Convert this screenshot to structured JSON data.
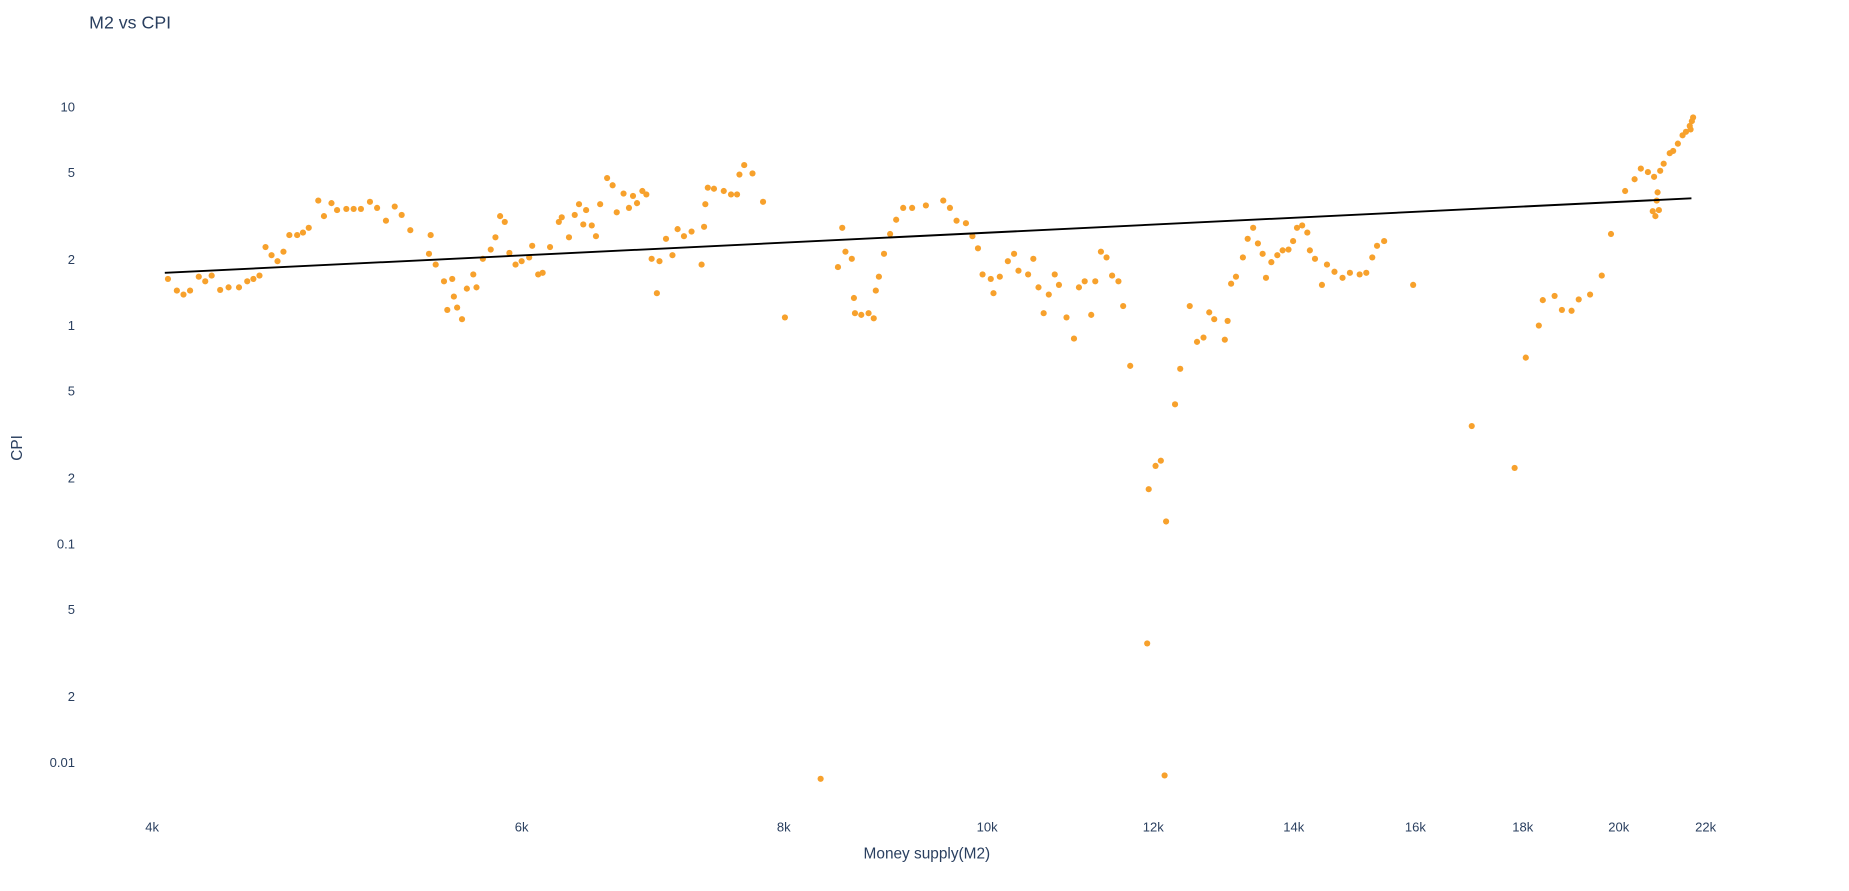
{
  "chart_data": {
    "type": "scatter",
    "title": "M2 vs CPI",
    "x_label": "Money supply(M2)",
    "y_label": "CPI",
    "log_x": true,
    "log_y": true,
    "grid": false,
    "xlim": [
      3733,
      23500
    ],
    "ylim": [
      0.0064,
      17.8
    ],
    "xticks": [
      {
        "value": 4000,
        "label": "4k"
      },
      {
        "value": 6000,
        "label": "6k"
      },
      {
        "value": 8000,
        "label": "8k"
      },
      {
        "value": 10000,
        "label": "10k"
      },
      {
        "value": 12000,
        "label": "12k"
      },
      {
        "value": 14000,
        "label": "14k"
      },
      {
        "value": 16000,
        "label": "16k"
      },
      {
        "value": 18000,
        "label": "18k"
      },
      {
        "value": 20000,
        "label": "20k"
      },
      {
        "value": 22000,
        "label": "22k"
      }
    ],
    "yticks": [
      0.01,
      {
        "value": 0.02,
        "label": "2"
      },
      {
        "value": 0.05,
        "label": "5"
      },
      0.1,
      {
        "value": 0.2,
        "label": "2"
      },
      {
        "value": 0.5,
        "label": "5"
      },
      1,
      {
        "value": 2,
        "label": "2"
      },
      {
        "value": 5,
        "label": "5"
      },
      10
    ],
    "color": "#f7a12c",
    "x": [
      4070,
      4110,
      4140,
      4170,
      4210,
      4240,
      4270,
      4310,
      4350,
      4400,
      4440,
      4470,
      4500,
      4530,
      4560,
      4590,
      4620,
      4650,
      4690,
      4720,
      4750,
      4800,
      4830,
      4870,
      4900,
      4950,
      4990,
      5030,
      5080,
      5120,
      5170,
      5220,
      5260,
      5310,
      5420,
      5430,
      5460,
      5510,
      5530,
      5560,
      5570,
      5590,
      5620,
      5650,
      5690,
      5710,
      5750,
      5800,
      5830,
      5860,
      5890,
      5920,
      5960,
      6000,
      6050,
      6070,
      6110,
      6140,
      6190,
      6250,
      6270,
      6320,
      6360,
      6390,
      6420,
      6440,
      6480,
      6510,
      6540,
      6590,
      6630,
      6660,
      6710,
      6750,
      6780,
      6810,
      6850,
      6880,
      6920,
      6960,
      6980,
      7030,
      7080,
      7120,
      7170,
      7230,
      7310,
      7330,
      7340,
      7360,
      7410,
      7490,
      7550,
      7600,
      7620,
      7660,
      7730,
      7820,
      8010,
      8330,
      8490,
      8530,
      8560,
      8620,
      8640,
      8650,
      8710,
      8780,
      8830,
      8850,
      8880,
      8930,
      8990,
      9050,
      9120,
      9210,
      9350,
      9530,
      9600,
      9670,
      9770,
      9840,
      9900,
      9950,
      10040,
      10070,
      10140,
      10230,
      10300,
      10350,
      10460,
      10520,
      10580,
      10640,
      10700,
      10770,
      10820,
      10910,
      11000,
      11060,
      11130,
      11210,
      11260,
      11330,
      11400,
      11470,
      11550,
      11610,
      11700,
      11920,
      11940,
      12030,
      12100,
      12170,
      12150,
      12290,
      12360,
      12490,
      12590,
      12680,
      12760,
      12830,
      12980,
      13020,
      13070,
      13140,
      13240,
      13310,
      13390,
      13460,
      13530,
      13580,
      13660,
      13750,
      13830,
      13920,
      13990,
      14050,
      14130,
      14210,
      14250,
      14330,
      14440,
      14520,
      14640,
      14770,
      14890,
      15050,
      15160,
      15260,
      15340,
      15460,
      15960,
      17020,
      17840,
      18060,
      18320,
      18400,
      18640,
      18790,
      18990,
      19140,
      19380,
      19630,
      19830,
      20140,
      20350,
      20490,
      20650,
      20790,
      20760,
      20820,
      20900,
      20870,
      20850,
      20930,
      21010,
      21150,
      21230,
      21340,
      21450,
      21530,
      21620,
      21670,
      21700,
      21640
    ],
    "y": [
      1.65,
      1.46,
      1.4,
      1.46,
      1.69,
      1.61,
      1.71,
      1.47,
      1.51,
      1.51,
      1.61,
      1.65,
      1.71,
      2.31,
      2.12,
      1.99,
      2.2,
      2.62,
      2.62,
      2.69,
      2.83,
      3.77,
      3.2,
      3.67,
      3.41,
      3.45,
      3.45,
      3.45,
      3.72,
      3.49,
      3.05,
      3.54,
      3.24,
      2.76,
      2.15,
      2.62,
      1.92,
      1.61,
      1.19,
      1.65,
      1.37,
      1.22,
      1.08,
      1.49,
      1.73,
      1.51,
      2.04,
      2.25,
      2.56,
      3.2,
      3.01,
      2.17,
      1.92,
      1.99,
      2.07,
      2.34,
      1.73,
      1.76,
      2.31,
      3.01,
      3.16,
      2.56,
      3.24,
      3.63,
      2.93,
      3.41,
      2.9,
      2.59,
      3.63,
      4.78,
      4.43,
      3.33,
      4.06,
      3.49,
      3.96,
      3.67,
      4.17,
      4.02,
      2.04,
      1.42,
      1.99,
      2.52,
      2.12,
      2.79,
      2.59,
      2.72,
      1.92,
      2.86,
      3.63,
      4.32,
      4.27,
      4.17,
      4.02,
      4.02,
      4.96,
      5.48,
      5.02,
      3.72,
      1.1,
      0.0085,
      1.87,
      2.83,
      2.2,
      2.04,
      1.35,
      1.15,
      1.13,
      1.15,
      1.09,
      1.46,
      1.69,
      2.15,
      2.65,
      3.08,
      3.49,
      3.49,
      3.58,
      3.77,
      3.49,
      3.05,
      2.97,
      2.59,
      2.28,
      1.73,
      1.65,
      1.42,
      1.69,
      1.99,
      2.15,
      1.8,
      1.73,
      2.04,
      1.51,
      1.15,
      1.4,
      1.73,
      1.55,
      1.1,
      0.88,
      1.51,
      1.61,
      1.13,
      1.61,
      2.2,
      2.07,
      1.71,
      1.61,
      1.24,
      0.66,
      0.0354,
      0.18,
      0.23,
      0.243,
      0.128,
      0.0088,
      0.44,
      0.64,
      1.24,
      0.85,
      0.89,
      1.16,
      1.08,
      0.87,
      1.06,
      1.57,
      1.69,
      2.07,
      2.52,
      2.83,
      2.4,
      2.15,
      1.67,
      1.97,
      2.12,
      2.23,
      2.25,
      2.46,
      2.83,
      2.9,
      2.69,
      2.23,
      2.04,
      1.55,
      1.92,
      1.78,
      1.67,
      1.76,
      1.73,
      1.76,
      2.07,
      2.34,
      2.46,
      1.55,
      0.35,
      0.225,
      0.72,
      1.01,
      1.32,
      1.38,
      1.19,
      1.18,
      1.33,
      1.4,
      1.71,
      2.65,
      4.17,
      4.72,
      5.28,
      5.09,
      4.84,
      3.37,
      3.2,
      3.41,
      4.11,
      3.77,
      5.16,
      5.56,
      6.21,
      6.36,
      6.87,
      7.5,
      7.78,
      8.28,
      8.71,
      9.05,
      7.98
    ],
    "trendline": {
      "x": [
        4056,
        21660
      ],
      "y": [
        1.76,
        3.86
      ],
      "color": "#000000"
    }
  }
}
